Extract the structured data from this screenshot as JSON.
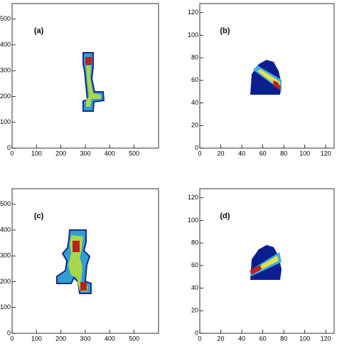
{
  "chart_data": [
    {
      "type": "heatmap",
      "annotation": "(a)",
      "xlim": [
        0,
        600
      ],
      "ylim": [
        0,
        560
      ],
      "xticks": [
        0,
        100,
        200,
        300,
        400,
        500
      ],
      "yticks": [
        0,
        100,
        200,
        300,
        400,
        500
      ]
    },
    {
      "type": "heatmap",
      "annotation": "(b)",
      "xlim": [
        0,
        128
      ],
      "ylim": [
        0,
        128
      ],
      "xticks": [
        0,
        20,
        40,
        60,
        80,
        100,
        120
      ],
      "yticks": [
        0,
        20,
        40,
        60,
        80,
        100,
        120
      ]
    },
    {
      "type": "heatmap",
      "annotation": "(c)",
      "xlim": [
        0,
        600
      ],
      "ylim": [
        0,
        560
      ],
      "xticks": [
        0,
        100,
        200,
        300,
        400,
        500
      ],
      "yticks": [
        0,
        100,
        200,
        300,
        400,
        500
      ]
    },
    {
      "type": "heatmap",
      "annotation": "(d)",
      "xlim": [
        0,
        128
      ],
      "ylim": [
        0,
        128
      ],
      "xticks": [
        0,
        20,
        40,
        60,
        80,
        100,
        120
      ],
      "yticks": [
        0,
        20,
        40,
        60,
        80,
        100,
        120
      ]
    }
  ]
}
